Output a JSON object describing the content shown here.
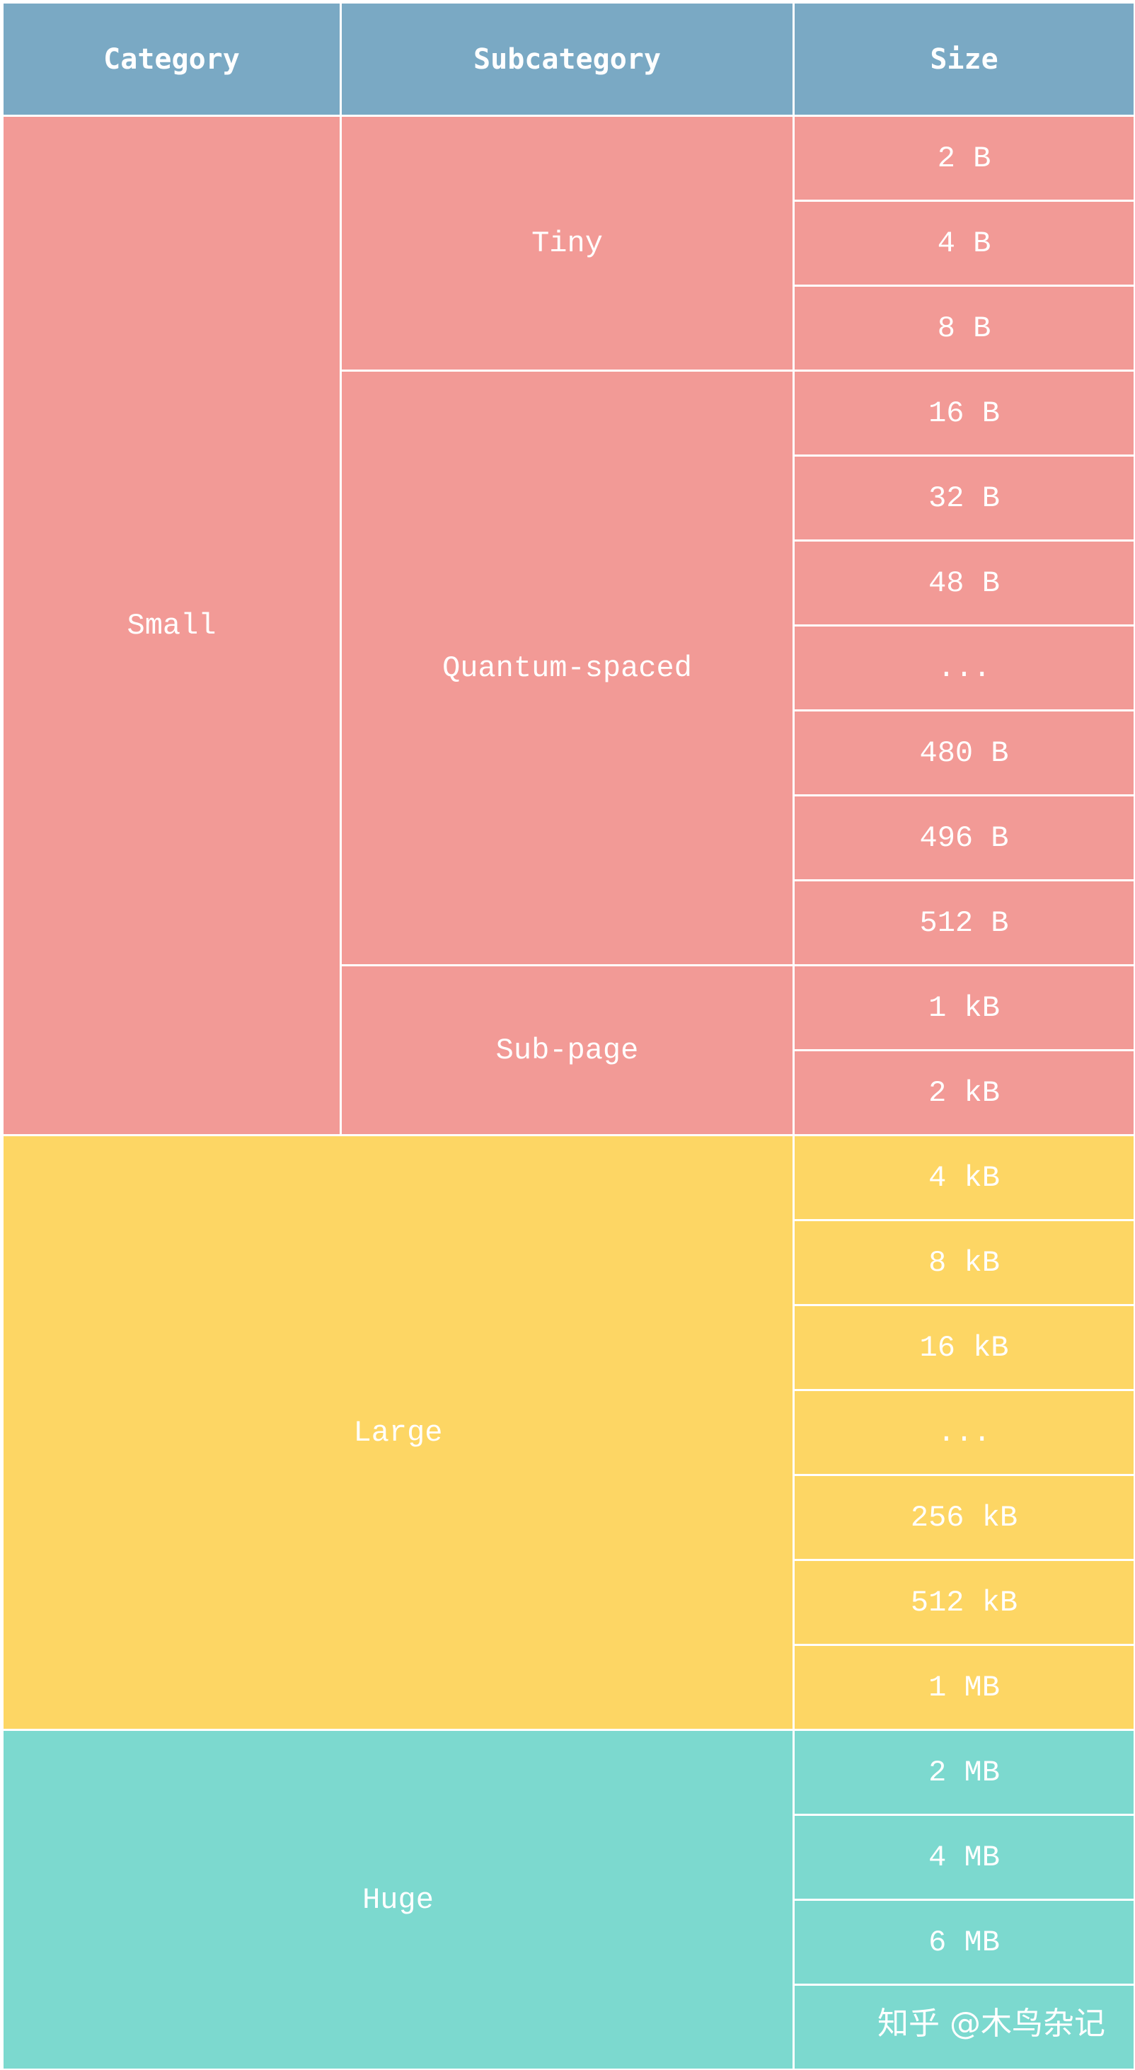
{
  "header": {
    "category": "Category",
    "subcategory": "Subcategory",
    "size": "Size"
  },
  "categories": {
    "small": "Small",
    "large": "Large",
    "huge": "Huge"
  },
  "subcategories": {
    "tiny": "Tiny",
    "quantum_spaced": "Quantum-spaced",
    "sub_page": "Sub-page"
  },
  "sizes": [
    "2 B",
    "4 B",
    "8 B",
    "16 B",
    "32 B",
    "48 B",
    "...",
    "480 B",
    "496 B",
    "512 B",
    "1 kB",
    "2 kB",
    "4 kB",
    "8 kB",
    "16 kB",
    "...",
    "256 kB",
    "512 kB",
    "1 MB",
    "2 MB",
    "4 MB",
    "6 MB",
    ""
  ],
  "colors": {
    "header": "#7aa9c4",
    "small": "#f29a96",
    "large": "#fdd664",
    "huge": "#7cd9cf"
  },
  "watermark": "知乎 @木鸟杂记"
}
